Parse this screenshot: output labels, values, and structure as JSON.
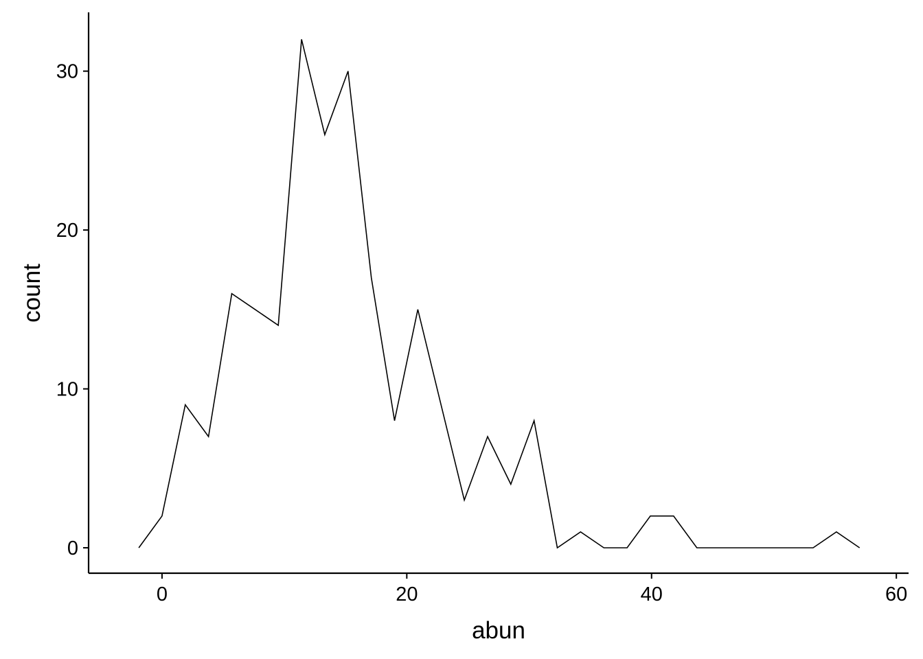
{
  "chart_data": {
    "type": "line",
    "title": "",
    "xlabel": "abun",
    "ylabel": "count",
    "xlim": [
      -6,
      61
    ],
    "ylim": [
      -1.6,
      33.7
    ],
    "xticks": [
      0,
      20,
      40,
      60
    ],
    "yticks": [
      0,
      10,
      20,
      30
    ],
    "xtick_labels": [
      "0",
      "20",
      "40",
      "60"
    ],
    "ytick_labels": [
      "0",
      "10",
      "20",
      "30"
    ],
    "grid": false,
    "line_color": "#000000",
    "series": [
      {
        "x": [
          -1.9,
          0.0,
          1.9,
          3.8,
          5.7,
          7.6,
          9.5,
          11.4,
          13.3,
          15.2,
          17.1,
          19.0,
          20.9,
          22.8,
          24.7,
          26.6,
          28.5,
          30.4,
          32.3,
          34.2,
          36.1,
          38.0,
          39.9,
          41.8,
          43.7,
          45.6,
          47.5,
          49.4,
          51.3,
          53.2,
          55.1,
          57.0
        ],
        "values": [
          0,
          2,
          9,
          7,
          16,
          15,
          14,
          32,
          26,
          30,
          17,
          8,
          15,
          9,
          3,
          7,
          4,
          8,
          0,
          1,
          0,
          0,
          2,
          2,
          0,
          0,
          0,
          0,
          0,
          0,
          1,
          0
        ]
      }
    ]
  }
}
